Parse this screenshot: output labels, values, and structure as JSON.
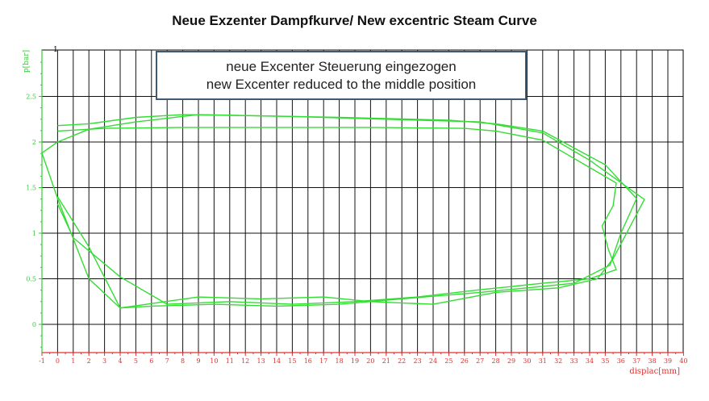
{
  "page": {
    "title": "Neue Exzenter Dampfkurve/ New excentric Steam Curve"
  },
  "chart_data": {
    "type": "line",
    "title": "Neue Exzenter Dampfkurve/ New excentric Steam Curve",
    "xlabel": "displac[mm]",
    "ylabel": "p[bar]",
    "xlim": [
      -1,
      40
    ],
    "ylim": [
      -0.3,
      3.0
    ],
    "x_ticks": [
      "-1",
      "0",
      "1",
      "2",
      "3",
      "4",
      "5",
      "6",
      "7",
      "8",
      "9",
      "10",
      "11",
      "12",
      "13",
      "14",
      "15",
      "16",
      "17",
      "18",
      "19",
      "20",
      "21",
      "22",
      "23",
      "24",
      "25",
      "26",
      "27",
      "28",
      "29",
      "30",
      "31",
      "32",
      "33",
      "34",
      "35",
      "36",
      "37",
      "38",
      "39",
      "40"
    ],
    "y_ticks": [
      "0",
      "0.5",
      "1",
      "1.5",
      "2",
      "2.5"
    ],
    "corner_label": "1",
    "grid": true,
    "colors": {
      "curve": "#33dd33",
      "x_axis": "#e23030",
      "y_axis": "#33cc33",
      "box_border": "#3f5a74"
    },
    "annotation": {
      "line1": "neue Excenter Steuerung eingezogen",
      "line2": "new Excenter reduced to the middle position"
    },
    "series": [
      {
        "values": [
          [
            -1,
            1.88
          ],
          [
            0,
            2.0
          ],
          [
            2,
            2.14
          ],
          [
            5,
            2.22
          ],
          [
            9,
            2.3
          ],
          [
            15,
            2.28
          ],
          [
            21,
            2.25
          ],
          [
            27,
            2.22
          ],
          [
            31,
            2.1
          ],
          [
            34,
            1.8
          ],
          [
            37.5,
            1.37
          ],
          [
            35.5,
            0.72
          ],
          [
            34.5,
            0.5
          ],
          [
            32,
            0.4
          ],
          [
            28,
            0.35
          ],
          [
            24,
            0.22
          ],
          [
            20,
            0.25
          ],
          [
            17,
            0.3
          ],
          [
            13,
            0.28
          ],
          [
            9,
            0.3
          ],
          [
            4,
            0.18
          ],
          [
            2,
            0.5
          ],
          [
            0,
            1.38
          ],
          [
            -1,
            1.88
          ]
        ]
      },
      {
        "values": [
          [
            0,
            2.18
          ],
          [
            2,
            2.2
          ],
          [
            5,
            2.27
          ],
          [
            8,
            2.3
          ],
          [
            12,
            2.29
          ],
          [
            18,
            2.27
          ],
          [
            25,
            2.24
          ],
          [
            28,
            2.2
          ],
          [
            31,
            2.12
          ],
          [
            35,
            1.75
          ],
          [
            37,
            1.38
          ],
          [
            36,
            1.0
          ],
          [
            35.3,
            0.65
          ],
          [
            33,
            0.45
          ],
          [
            30,
            0.4
          ],
          [
            27,
            0.35
          ],
          [
            22,
            0.28
          ],
          [
            18,
            0.22
          ],
          [
            14,
            0.2
          ],
          [
            10,
            0.22
          ],
          [
            6,
            0.2
          ],
          [
            4,
            0.18
          ],
          [
            2,
            0.85
          ],
          [
            0,
            1.4
          ]
        ]
      },
      {
        "values": [
          [
            0,
            2.12
          ],
          [
            3,
            2.15
          ],
          [
            8,
            2.16
          ],
          [
            14,
            2.16
          ],
          [
            20,
            2.16
          ],
          [
            26,
            2.15
          ],
          [
            28,
            2.12
          ],
          [
            31,
            2.02
          ],
          [
            34,
            1.72
          ],
          [
            35.7,
            1.55
          ],
          [
            35.5,
            1.3
          ],
          [
            34.8,
            1.08
          ],
          [
            35.2,
            0.82
          ],
          [
            35.7,
            0.6
          ],
          [
            34,
            0.5
          ],
          [
            31,
            0.45
          ],
          [
            27,
            0.38
          ],
          [
            23,
            0.3
          ],
          [
            19,
            0.25
          ],
          [
            15,
            0.22
          ],
          [
            11,
            0.25
          ],
          [
            7,
            0.22
          ],
          [
            4,
            0.52
          ],
          [
            1,
            0.95
          ],
          [
            0,
            1.32
          ]
        ]
      }
    ]
  }
}
